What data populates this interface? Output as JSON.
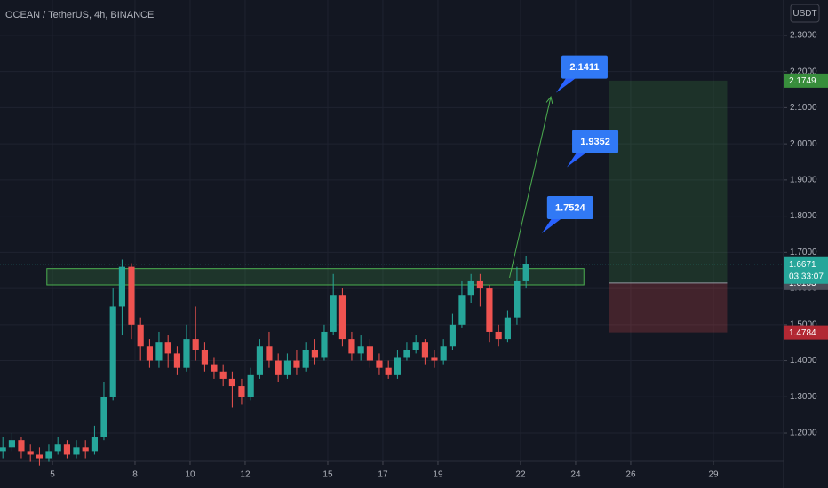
{
  "chart_data": {
    "type": "candlestick",
    "title": "OCEAN / TetherUS, 4h, BINANCE",
    "currency": "USDT",
    "up_color": "#26a69a",
    "down_color": "#ef5350",
    "grid": true,
    "xlim": [
      3.097,
      31.55
    ],
    "ylim": [
      1.1215,
      2.398
    ],
    "xticks": [
      5,
      8,
      10,
      12,
      15,
      17,
      19,
      22,
      24,
      26,
      29
    ],
    "yticks": [
      {
        "value": 1.2,
        "label": "1.2000"
      },
      {
        "value": 1.3,
        "label": "1.3000"
      },
      {
        "value": 1.4,
        "label": "1.4000"
      },
      {
        "value": 1.5,
        "label": "1.5000"
      },
      {
        "value": 1.6,
        "label": "1.6000"
      },
      {
        "value": 1.7,
        "label": "1.7000"
      },
      {
        "value": 1.8,
        "label": "1.8000"
      },
      {
        "value": 1.9,
        "label": "1.9000"
      },
      {
        "value": 2.0,
        "label": "2.0000"
      },
      {
        "value": 2.1,
        "label": "2.1000"
      },
      {
        "value": 2.2,
        "label": "2.2000"
      },
      {
        "value": 2.3,
        "label": "2.3000"
      }
    ],
    "x": [
      3.2,
      3.53,
      3.87,
      4.2,
      4.53,
      4.87,
      5.2,
      5.53,
      5.87,
      6.2,
      6.53,
      6.87,
      7.2,
      7.53,
      7.87,
      8.2,
      8.53,
      8.87,
      9.2,
      9.53,
      9.87,
      10.2,
      10.53,
      10.87,
      11.2,
      11.53,
      11.87,
      12.2,
      12.53,
      12.87,
      13.2,
      13.53,
      13.87,
      14.2,
      14.53,
      14.87,
      15.2,
      15.53,
      15.87,
      16.2,
      16.53,
      16.87,
      17.2,
      17.53,
      17.87,
      18.2,
      18.53,
      18.87,
      19.2,
      19.53,
      19.87,
      20.2,
      20.53,
      20.87,
      21.2,
      21.53,
      21.87,
      22.2
    ],
    "open": [
      1.15,
      1.16,
      1.18,
      1.15,
      1.14,
      1.13,
      1.15,
      1.17,
      1.14,
      1.16,
      1.15,
      1.19,
      1.3,
      1.55,
      1.66,
      1.5,
      1.44,
      1.4,
      1.45,
      1.42,
      1.38,
      1.46,
      1.43,
      1.39,
      1.37,
      1.35,
      1.33,
      1.3,
      1.36,
      1.44,
      1.4,
      1.36,
      1.4,
      1.38,
      1.43,
      1.41,
      1.48,
      1.58,
      1.46,
      1.42,
      1.44,
      1.4,
      1.38,
      1.36,
      1.41,
      1.43,
      1.45,
      1.41,
      1.4,
      1.44,
      1.5,
      1.58,
      1.62,
      1.6,
      1.48,
      1.46,
      1.52,
      1.62
    ],
    "high": [
      1.19,
      1.2,
      1.19,
      1.17,
      1.16,
      1.17,
      1.19,
      1.18,
      1.18,
      1.18,
      1.22,
      1.34,
      1.6,
      1.68,
      1.67,
      1.52,
      1.46,
      1.48,
      1.47,
      1.44,
      1.5,
      1.55,
      1.45,
      1.41,
      1.39,
      1.37,
      1.35,
      1.38,
      1.46,
      1.48,
      1.42,
      1.42,
      1.43,
      1.45,
      1.46,
      1.5,
      1.64,
      1.6,
      1.48,
      1.47,
      1.46,
      1.42,
      1.4,
      1.43,
      1.45,
      1.47,
      1.46,
      1.43,
      1.46,
      1.53,
      1.62,
      1.64,
      1.64,
      1.61,
      1.5,
      1.54,
      1.66,
      1.69
    ],
    "low": [
      1.13,
      1.15,
      1.13,
      1.12,
      1.11,
      1.12,
      1.14,
      1.13,
      1.13,
      1.13,
      1.14,
      1.18,
      1.29,
      1.47,
      1.46,
      1.4,
      1.38,
      1.38,
      1.38,
      1.36,
      1.37,
      1.4,
      1.37,
      1.35,
      1.33,
      1.27,
      1.28,
      1.29,
      1.35,
      1.38,
      1.34,
      1.35,
      1.36,
      1.37,
      1.39,
      1.4,
      1.47,
      1.44,
      1.4,
      1.4,
      1.38,
      1.36,
      1.35,
      1.35,
      1.4,
      1.42,
      1.39,
      1.38,
      1.39,
      1.43,
      1.49,
      1.56,
      1.55,
      1.45,
      1.44,
      1.45,
      1.5,
      1.6
    ],
    "close": [
      1.16,
      1.18,
      1.15,
      1.14,
      1.13,
      1.15,
      1.17,
      1.14,
      1.16,
      1.15,
      1.19,
      1.3,
      1.55,
      1.66,
      1.5,
      1.44,
      1.4,
      1.45,
      1.42,
      1.38,
      1.46,
      1.43,
      1.39,
      1.37,
      1.35,
      1.33,
      1.3,
      1.36,
      1.44,
      1.4,
      1.36,
      1.4,
      1.38,
      1.43,
      1.41,
      1.48,
      1.58,
      1.46,
      1.42,
      1.44,
      1.4,
      1.38,
      1.36,
      1.41,
      1.43,
      1.45,
      1.41,
      1.4,
      1.44,
      1.5,
      1.58,
      1.62,
      1.6,
      1.48,
      1.46,
      1.52,
      1.62,
      1.6671
    ],
    "last_price": 1.6671,
    "countdown": "03:33:07",
    "zone": {
      "x": [
        4.8,
        24.3
      ],
      "low": 1.61,
      "high": 1.655,
      "color": "#4caf50"
    },
    "position": {
      "x": [
        25.2,
        29.5
      ],
      "entry": 1.6153,
      "target": 2.1749,
      "stop": 1.4784
    },
    "arrow": {
      "x": [
        21.6,
        23.1
      ],
      "y": [
        1.63,
        2.13
      ],
      "color": "#4caf50"
    },
    "annotations": [
      {
        "x": 23.29,
        "value": 2.1411,
        "label": "2.1411"
      },
      {
        "x": 23.68,
        "value": 1.9352,
        "label": "1.9352"
      },
      {
        "x": 22.77,
        "value": 1.7524,
        "label": "1.7524"
      }
    ]
  }
}
